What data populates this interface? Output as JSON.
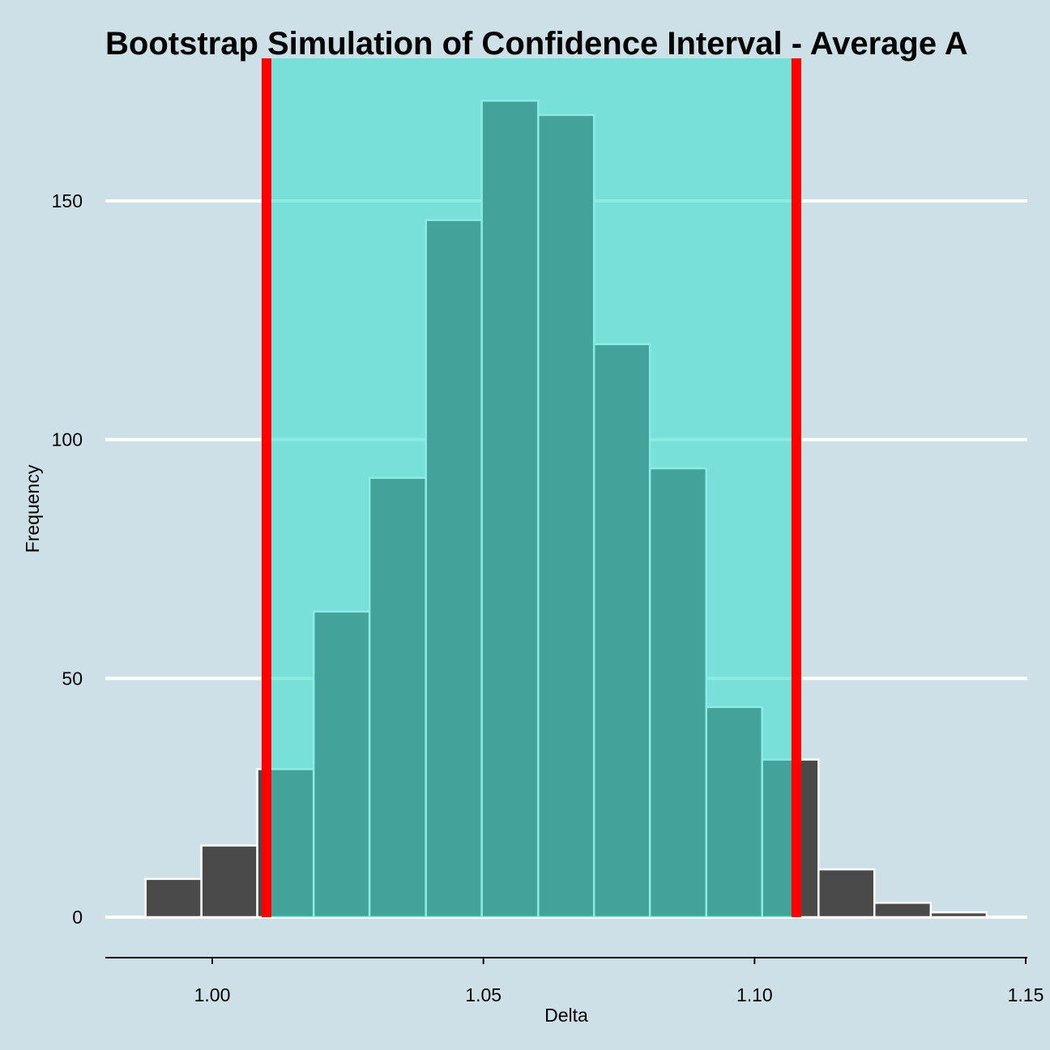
{
  "chart_data": {
    "type": "bar",
    "title": "Bootstrap Simulation of Confidence Interval - Average A",
    "xlabel": "Delta",
    "ylabel": "Frequency",
    "xlim": [
      0.98,
      1.15
    ],
    "ylim": [
      -8,
      180
    ],
    "x_ticks": [
      1.0,
      1.05,
      1.1,
      1.15
    ],
    "x_tick_labels": [
      "1.00",
      "1.05",
      "1.10",
      "1.15"
    ],
    "y_ticks": [
      0,
      50,
      100,
      150
    ],
    "y_tick_labels": [
      "0",
      "50",
      "100",
      "150"
    ],
    "bins": [
      {
        "x0": 0.9877,
        "x1": 0.998,
        "count": 8
      },
      {
        "x0": 0.998,
        "x1": 1.0083,
        "count": 15
      },
      {
        "x0": 1.0083,
        "x1": 1.0187,
        "count": 31
      },
      {
        "x0": 1.0187,
        "x1": 1.029,
        "count": 64
      },
      {
        "x0": 1.029,
        "x1": 1.0394,
        "count": 92
      },
      {
        "x0": 1.0394,
        "x1": 1.0497,
        "count": 146
      },
      {
        "x0": 1.0497,
        "x1": 1.0601,
        "count": 171
      },
      {
        "x0": 1.0601,
        "x1": 1.0704,
        "count": 168
      },
      {
        "x0": 1.0704,
        "x1": 1.0807,
        "count": 120
      },
      {
        "x0": 1.0807,
        "x1": 1.0911,
        "count": 94
      },
      {
        "x0": 1.0911,
        "x1": 1.1014,
        "count": 44
      },
      {
        "x0": 1.1014,
        "x1": 1.1118,
        "count": 33
      },
      {
        "x0": 1.1118,
        "x1": 1.1221,
        "count": 10
      },
      {
        "x0": 1.1221,
        "x1": 1.1325,
        "count": 3
      },
      {
        "x0": 1.1325,
        "x1": 1.1428,
        "count": 1
      }
    ],
    "confidence_interval": [
      1.01,
      1.1077
    ],
    "grid": "horizontal",
    "colors": {
      "background": "#cde0e7",
      "bar_fill": "#4a4a4a",
      "bar_stroke": "#ffffff",
      "interval_fill": "#40e0d0",
      "interval_opacity": 0.6,
      "interval_line": "#ff0000",
      "grid": "#ffffff"
    }
  }
}
